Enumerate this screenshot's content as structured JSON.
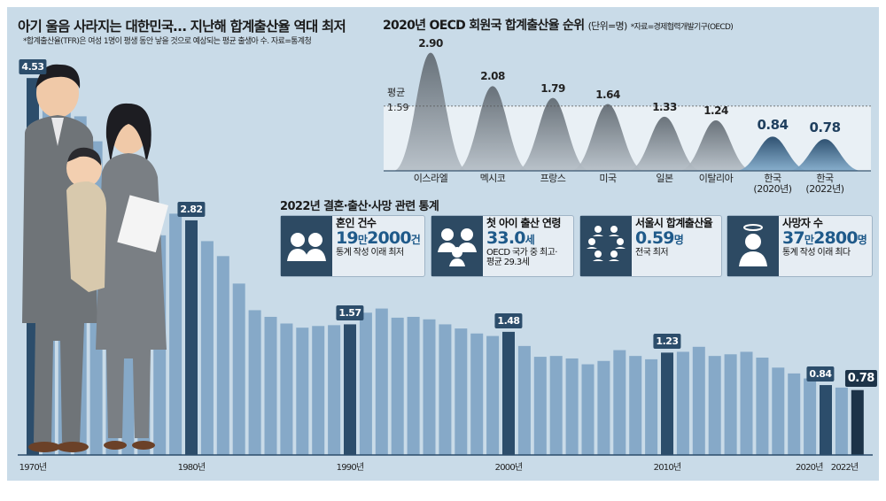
{
  "title": "아기 울음 사라지는 대한민국… 지난해 합계출산율 역대 최저",
  "subtitle": "*합계출산율(TFR)은 여성 1명이 평생 동안 낳을 것으로 예상되는 평균 출생아 수. 자료=통계청",
  "chart_data": [
    {
      "type": "bar",
      "title": "아기 울음 사라지는 대한민국… 지난해 합계출산율 역대 최저",
      "categories": [
        1970,
        1971,
        1972,
        1973,
        1974,
        1975,
        1976,
        1977,
        1978,
        1979,
        1980,
        1981,
        1982,
        1983,
        1984,
        1985,
        1986,
        1987,
        1988,
        1989,
        1990,
        1991,
        1992,
        1993,
        1994,
        1995,
        1996,
        1997,
        1998,
        1999,
        2000,
        2001,
        2002,
        2003,
        2004,
        2005,
        2006,
        2007,
        2008,
        2009,
        2010,
        2011,
        2012,
        2013,
        2014,
        2015,
        2016,
        2017,
        2018,
        2019,
        2020,
        2021,
        2022
      ],
      "values": [
        4.53,
        4.54,
        4.12,
        4.07,
        3.77,
        3.43,
        3.0,
        2.99,
        2.64,
        2.9,
        2.82,
        2.57,
        2.39,
        2.06,
        1.74,
        1.66,
        1.58,
        1.53,
        1.55,
        1.56,
        1.57,
        1.71,
        1.76,
        1.65,
        1.66,
        1.63,
        1.57,
        1.52,
        1.46,
        1.43,
        1.48,
        1.31,
        1.18,
        1.19,
        1.16,
        1.09,
        1.13,
        1.26,
        1.19,
        1.15,
        1.23,
        1.24,
        1.3,
        1.19,
        1.21,
        1.24,
        1.17,
        1.05,
        0.98,
        0.92,
        0.84,
        0.81,
        0.78
      ],
      "labels": [
        {
          "year": 1970,
          "text": "4.53"
        },
        {
          "year": 1980,
          "text": "2.82"
        },
        {
          "year": 1990,
          "text": "1.57"
        },
        {
          "year": 2000,
          "text": "1.48"
        },
        {
          "year": 2010,
          "text": "1.23"
        },
        {
          "year": 2020,
          "text": "0.84"
        },
        {
          "year": 2022,
          "text": "0.78"
        }
      ],
      "tick_labels": [
        {
          "year": 1970,
          "text": "1970년"
        },
        {
          "year": 1980,
          "text": "1980년"
        },
        {
          "year": 1990,
          "text": "1990년"
        },
        {
          "year": 2000,
          "text": "2000년"
        },
        {
          "year": 2010,
          "text": "2010년"
        },
        {
          "year": 2020,
          "text": "2020년"
        },
        {
          "year": 2022,
          "text": "2022년"
        }
      ],
      "ylim": [
        0,
        4.6
      ],
      "grid": false,
      "colors": {
        "bar": "#86a9c8",
        "highlight": "#2c4d6b",
        "latest": "#1d3348"
      }
    },
    {
      "type": "area",
      "title": "2020년 OECD 회원국 합계출산율 순위",
      "unit": "(단위=명)",
      "source": "*자료=경제협력개발기구(OECD)",
      "categories": [
        "이스라엘",
        "멕시코",
        "프랑스",
        "미국",
        "일본",
        "이탈리아",
        "한국\n(2020년)",
        "한국\n(2022년)"
      ],
      "values": [
        2.9,
        2.08,
        1.79,
        1.64,
        1.33,
        1.24,
        0.84,
        0.78
      ],
      "value_labels": [
        "2.90",
        "2.08",
        "1.79",
        "1.64",
        "1.33",
        "1.24",
        "0.84",
        "0.78"
      ],
      "average": {
        "label": "평균",
        "value": 1.59,
        "text": "1.59"
      },
      "colors": {
        "other": "#7f8a95",
        "korea": "#2f5d82"
      }
    }
  ],
  "stats": {
    "title": "2022년 결혼·출산·사망 관련 통계",
    "cards": [
      {
        "label": "혼인 건수",
        "num1": "19",
        "u1": "만",
        "num2": "2000",
        "u2": "건",
        "note": "통계 작성 이래 최저",
        "icon": "couple-icon"
      },
      {
        "label": "첫 아이 출산 연령",
        "num1": "33.0",
        "u1": "세",
        "num2": "",
        "u2": "",
        "note": "OECD 국가 중 최고·\n평균 29.3세",
        "icon": "family-icon"
      },
      {
        "label": "서울시 합계출산율",
        "num1": "0.59",
        "u1": "명",
        "num2": "",
        "u2": "",
        "note": "전국 최저",
        "icon": "group-icon"
      },
      {
        "label": "사망자 수",
        "num1": "37",
        "u1": "만",
        "num2": "2800",
        "u2": "명",
        "note": "통계 작성 이래 최다",
        "icon": "angel-icon"
      }
    ]
  }
}
